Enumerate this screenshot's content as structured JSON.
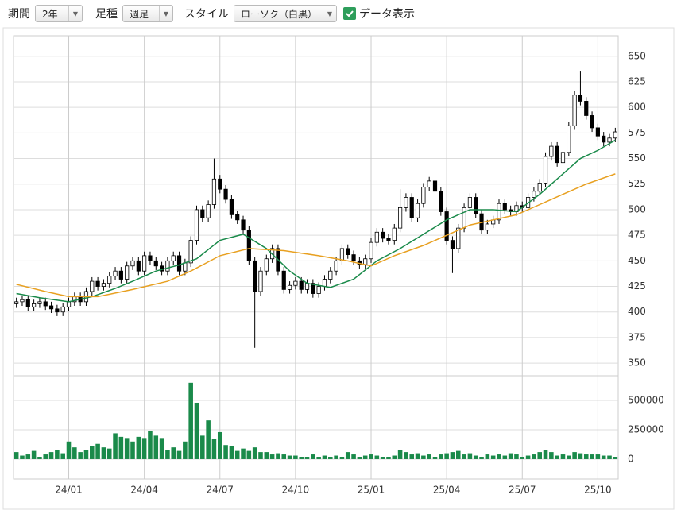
{
  "toolbar": {
    "period_label": "期間",
    "period_value": "2年",
    "bar_label": "足種",
    "bar_value": "週足",
    "style_label": "スタイル",
    "style_value": "ローソク（白黒）",
    "show_data": "データ表示"
  },
  "chart_data": {
    "type": "candlestick",
    "up_color": "#ffffff",
    "down_color": "#000000",
    "candles": [
      [
        408,
        414,
        404,
        410
      ],
      [
        410,
        416,
        406,
        412
      ],
      [
        412,
        416,
        401,
        405
      ],
      [
        405,
        412,
        401,
        408
      ],
      [
        408,
        414,
        404,
        410
      ],
      [
        410,
        414,
        402,
        406
      ],
      [
        406,
        410,
        399,
        403
      ],
      [
        403,
        407,
        396,
        400
      ],
      [
        400,
        409,
        396,
        405
      ],
      [
        405,
        414,
        401,
        410
      ],
      [
        410,
        419,
        406,
        415
      ],
      [
        415,
        419,
        406,
        410
      ],
      [
        410,
        424,
        406,
        420
      ],
      [
        420,
        434,
        416,
        430
      ],
      [
        430,
        434,
        421,
        425
      ],
      [
        425,
        432,
        421,
        428
      ],
      [
        428,
        439,
        424,
        435
      ],
      [
        435,
        444,
        431,
        440
      ],
      [
        440,
        444,
        428,
        432
      ],
      [
        432,
        449,
        428,
        445
      ],
      [
        445,
        454,
        441,
        450
      ],
      [
        450,
        454,
        436,
        440
      ],
      [
        440,
        459,
        436,
        455
      ],
      [
        455,
        459,
        446,
        450
      ],
      [
        450,
        454,
        441,
        445
      ],
      [
        445,
        449,
        436,
        440
      ],
      [
        440,
        454,
        436,
        450
      ],
      [
        450,
        459,
        446,
        455
      ],
      [
        455,
        459,
        436,
        440
      ],
      [
        440,
        452,
        436,
        448
      ],
      [
        448,
        474,
        444,
        470
      ],
      [
        470,
        504,
        466,
        500
      ],
      [
        500,
        504,
        488,
        492
      ],
      [
        492,
        509,
        488,
        505
      ],
      [
        505,
        550,
        501,
        530
      ],
      [
        530,
        534,
        516,
        520
      ],
      [
        520,
        524,
        506,
        510
      ],
      [
        510,
        514,
        491,
        495
      ],
      [
        495,
        499,
        486,
        490
      ],
      [
        490,
        494,
        476,
        480
      ],
      [
        480,
        484,
        446,
        450
      ],
      [
        450,
        454,
        365,
        420
      ],
      [
        420,
        444,
        416,
        440
      ],
      [
        440,
        456,
        436,
        452
      ],
      [
        452,
        466,
        448,
        462
      ],
      [
        462,
        466,
        436,
        440
      ],
      [
        440,
        444,
        418,
        422
      ],
      [
        422,
        430,
        418,
        426
      ],
      [
        426,
        434,
        422,
        430
      ],
      [
        430,
        434,
        418,
        422
      ],
      [
        422,
        432,
        418,
        428
      ],
      [
        428,
        432,
        414,
        418
      ],
      [
        418,
        429,
        414,
        425
      ],
      [
        425,
        436,
        421,
        432
      ],
      [
        432,
        444,
        428,
        440
      ],
      [
        440,
        454,
        436,
        450
      ],
      [
        450,
        466,
        446,
        462
      ],
      [
        462,
        466,
        452,
        456
      ],
      [
        456,
        460,
        446,
        450
      ],
      [
        450,
        454,
        442,
        446
      ],
      [
        446,
        456,
        442,
        452
      ],
      [
        452,
        472,
        448,
        468
      ],
      [
        468,
        482,
        464,
        478
      ],
      [
        478,
        482,
        468,
        472
      ],
      [
        472,
        476,
        466,
        470
      ],
      [
        470,
        486,
        466,
        482
      ],
      [
        482,
        520,
        478,
        502
      ],
      [
        502,
        516,
        498,
        512
      ],
      [
        512,
        516,
        488,
        492
      ],
      [
        492,
        510,
        488,
        506
      ],
      [
        506,
        526,
        502,
        522
      ],
      [
        522,
        532,
        518,
        528
      ],
      [
        528,
        532,
        514,
        518
      ],
      [
        518,
        522,
        494,
        498
      ],
      [
        498,
        502,
        466,
        470
      ],
      [
        470,
        474,
        438,
        462
      ],
      [
        462,
        486,
        458,
        482
      ],
      [
        482,
        506,
        478,
        502
      ],
      [
        502,
        516,
        498,
        512
      ],
      [
        512,
        516,
        492,
        496
      ],
      [
        496,
        500,
        476,
        480
      ],
      [
        480,
        490,
        476,
        486
      ],
      [
        486,
        494,
        482,
        490
      ],
      [
        490,
        510,
        486,
        506
      ],
      [
        506,
        510,
        496,
        500
      ],
      [
        500,
        504,
        494,
        498
      ],
      [
        498,
        508,
        494,
        504
      ],
      [
        504,
        508,
        498,
        502
      ],
      [
        502,
        516,
        498,
        512
      ],
      [
        512,
        522,
        508,
        518
      ],
      [
        518,
        530,
        514,
        526
      ],
      [
        526,
        556,
        522,
        552
      ],
      [
        552,
        566,
        548,
        562
      ],
      [
        562,
        566,
        542,
        546
      ],
      [
        546,
        560,
        542,
        556
      ],
      [
        556,
        586,
        552,
        582
      ],
      [
        582,
        616,
        578,
        612
      ],
      [
        612,
        635,
        602,
        606
      ],
      [
        606,
        610,
        588,
        592
      ],
      [
        592,
        596,
        576,
        580
      ],
      [
        580,
        584,
        568,
        572
      ],
      [
        572,
        576,
        562,
        566
      ],
      [
        566,
        574,
        562,
        570
      ],
      [
        570,
        580,
        566,
        576
      ]
    ],
    "xlim": [
      -0.5,
      103.5
    ],
    "xticks": [
      {
        "value": 9,
        "label": "24/01"
      },
      {
        "value": 22,
        "label": "24/04"
      },
      {
        "value": 35,
        "label": "24/07"
      },
      {
        "value": 48,
        "label": "24/10"
      },
      {
        "value": 61,
        "label": "25/01"
      },
      {
        "value": 74,
        "label": "25/04"
      },
      {
        "value": 87,
        "label": "25/07"
      },
      {
        "value": 100,
        "label": "25/10"
      }
    ],
    "ylim": [
      340,
      670
    ],
    "yticks": [
      350,
      375,
      400,
      425,
      450,
      475,
      500,
      525,
      550,
      575,
      600,
      625,
      650
    ],
    "grid": true,
    "lines": [
      {
        "color": "#1a8a4a",
        "x": [
          0,
          4,
          9,
          13,
          17,
          20,
          24,
          28,
          31,
          35,
          39,
          43,
          47,
          50,
          54,
          58,
          62,
          66,
          70,
          74,
          78,
          82,
          86,
          90,
          93,
          97,
          100,
          103
        ],
        "values": [
          418,
          414,
          410,
          415,
          423,
          430,
          440,
          446,
          452,
          470,
          476,
          462,
          440,
          428,
          424,
          432,
          450,
          462,
          476,
          490,
          500,
          500,
          498,
          515,
          530,
          550,
          558,
          568
        ]
      },
      {
        "color": "#e8a020",
        "x": [
          0,
          5,
          9,
          14,
          20,
          26,
          30,
          35,
          40,
          46,
          52,
          57,
          61,
          65,
          70,
          74,
          78,
          82,
          86,
          90,
          94,
          98,
          103
        ],
        "values": [
          427,
          420,
          415,
          415,
          422,
          430,
          440,
          455,
          462,
          460,
          455,
          450,
          445,
          455,
          465,
          475,
          485,
          490,
          495,
          505,
          515,
          525,
          535
        ]
      }
    ],
    "volume": {
      "type": "bar",
      "color": "#1a8a4a",
      "ylim": [
        -80000,
        680000
      ],
      "yticks": [
        0,
        250000,
        500000
      ],
      "values": [
        60000,
        30000,
        40000,
        70000,
        20000,
        40000,
        60000,
        80000,
        50000,
        150000,
        100000,
        60000,
        80000,
        110000,
        130000,
        100000,
        90000,
        220000,
        190000,
        180000,
        150000,
        190000,
        180000,
        240000,
        200000,
        180000,
        80000,
        100000,
        70000,
        150000,
        650000,
        480000,
        200000,
        330000,
        170000,
        230000,
        120000,
        110000,
        70000,
        90000,
        70000,
        100000,
        60000,
        60000,
        40000,
        50000,
        40000,
        30000,
        30000,
        20000,
        20000,
        40000,
        20000,
        30000,
        20000,
        30000,
        20000,
        60000,
        40000,
        20000,
        30000,
        40000,
        30000,
        20000,
        20000,
        30000,
        80000,
        60000,
        40000,
        50000,
        30000,
        40000,
        20000,
        40000,
        50000,
        60000,
        70000,
        40000,
        50000,
        30000,
        20000,
        40000,
        30000,
        40000,
        30000,
        50000,
        40000,
        20000,
        30000,
        40000,
        60000,
        80000,
        60000,
        30000,
        40000,
        30000,
        60000,
        50000,
        40000,
        40000,
        40000,
        30000,
        30000,
        20000
      ]
    }
  }
}
